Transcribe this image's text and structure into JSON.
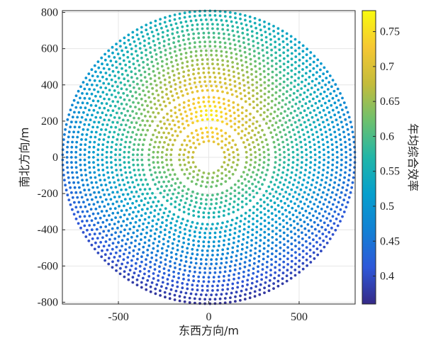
{
  "chart_data": {
    "type": "scatter",
    "title": "",
    "xlabel": "东西方向/m",
    "ylabel": "南北方向/m",
    "colorbar_label": "年均综合效率",
    "xlim": [
      -810,
      810
    ],
    "ylim": [
      -810,
      810
    ],
    "x_ticks": [
      -500,
      0,
      500
    ],
    "x_tick_labels": [
      "-500",
      "0",
      "500"
    ],
    "y_ticks": [
      -800,
      -600,
      -400,
      -200,
      0,
      200,
      400,
      600,
      800
    ],
    "y_tick_labels": [
      "-800",
      "-600",
      "-400",
      "-200",
      "0",
      "200",
      "400",
      "600",
      "800"
    ],
    "colorbar_range": [
      0.36,
      0.78
    ],
    "colorbar_ticks": [
      0.4,
      0.45,
      0.5,
      0.55,
      0.6,
      0.65,
      0.7,
      0.75
    ],
    "colorbar_tick_labels": [
      "0.4",
      "0.45",
      "0.5",
      "0.55",
      "0.6",
      "0.65",
      "0.7",
      "0.75"
    ],
    "colormap": "parula",
    "grid": true,
    "legend": "none",
    "field_layout": {
      "pattern": "radial-staggered heliostat field",
      "zones": [
        {
          "r_inner": 90,
          "r_outer": 180,
          "spacing": 28
        },
        {
          "r_inner": 210,
          "r_outer": 340,
          "spacing": 28
        },
        {
          "r_inner": 370,
          "r_outer": 810,
          "spacing": 28
        }
      ],
      "efficiency_peak": [
        0,
        230
      ],
      "efficiency_max": 0.77,
      "efficiency_min": 0.37
    }
  }
}
